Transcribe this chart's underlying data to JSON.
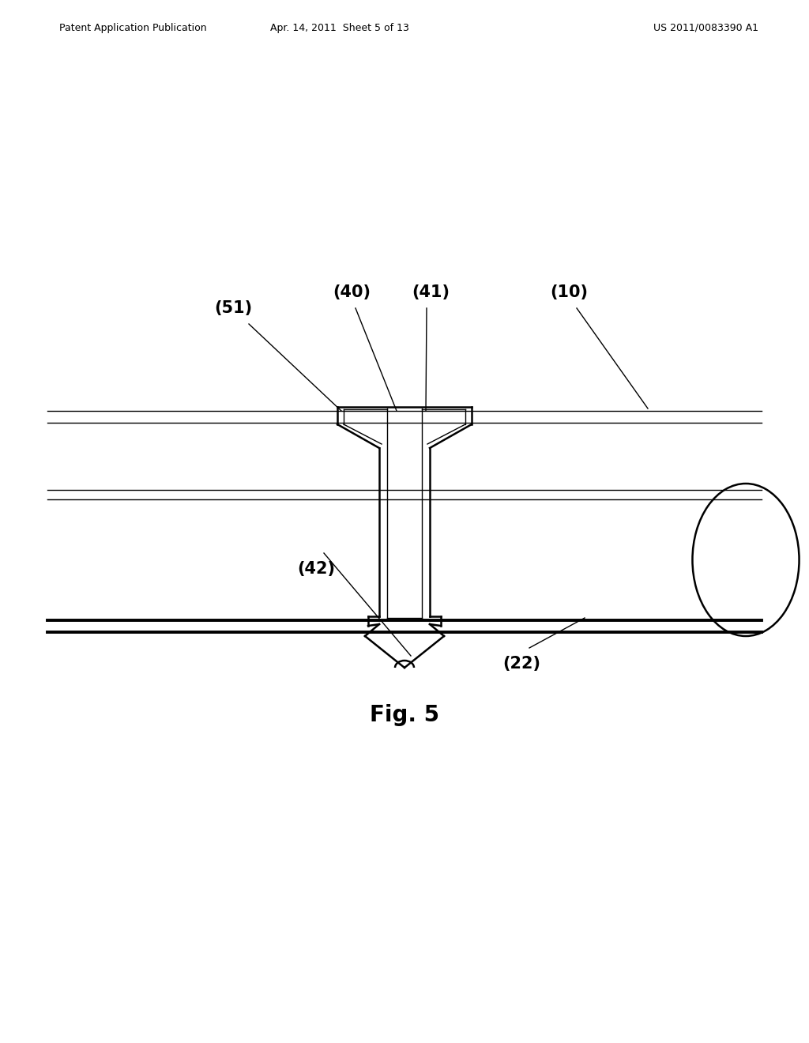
{
  "bg_color": "#ffffff",
  "line_color": "#000000",
  "header_left": "Patent Application Publication",
  "header_center": "Apr. 14, 2011  Sheet 5 of 13",
  "header_right": "US 2011/0083390 A1",
  "fig_label": "Fig. 5"
}
